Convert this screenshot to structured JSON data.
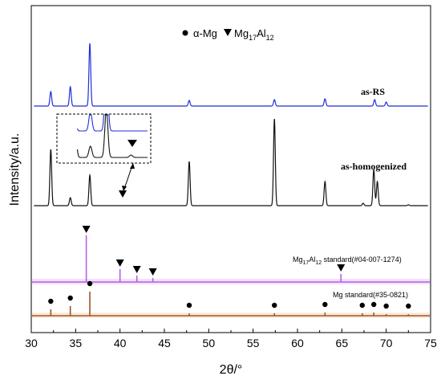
{
  "chart_data": {
    "type": "line",
    "xlabel": "2θ/°",
    "ylabel": "Intensity/a.u.",
    "xlim": [
      30,
      75
    ],
    "xticks": [
      "30",
      "35",
      "40",
      "45",
      "50",
      "55",
      "60",
      "65",
      "70",
      "75"
    ],
    "legend": {
      "position": "top",
      "alpha_label": "α-Mg",
      "mg17_prefix": "Mg",
      "mg17_sub1": "17",
      "mg17_mid": "Al",
      "mg17_sub2": "12"
    },
    "series": [
      {
        "name": "as-RS",
        "color": "#1f2fd8",
        "peaks": [
          [
            32.2,
            18
          ],
          [
            34.4,
            24
          ],
          [
            36.6,
            78
          ],
          [
            47.8,
            7
          ],
          [
            57.4,
            8
          ],
          [
            63.1,
            9
          ],
          [
            68.7,
            8
          ],
          [
            70.0,
            5
          ]
        ]
      },
      {
        "name": "as-homogenized",
        "color": "#111111",
        "peaks": [
          [
            32.2,
            70
          ],
          [
            34.4,
            10
          ],
          [
            36.6,
            38
          ],
          [
            47.8,
            55
          ],
          [
            57.4,
            108
          ],
          [
            63.1,
            30
          ],
          [
            67.4,
            3
          ],
          [
            68.6,
            45
          ],
          [
            69.0,
            30
          ],
          [
            72.5,
            1
          ]
        ]
      }
    ],
    "reference_patterns": [
      {
        "name": "Mg17Al12 standard(#04-007-1274)",
        "label_prefix": "Mg",
        "label_sub1": "17",
        "label_mid": "Al",
        "label_sub2": "12",
        "label_suffix": " standard(#04-007-1274)",
        "color": "#b060e8",
        "lines": [
          [
            36.2,
            58
          ],
          [
            40.0,
            16
          ],
          [
            41.9,
            8
          ],
          [
            43.7,
            5
          ],
          [
            64.9,
            10
          ]
        ]
      },
      {
        "name": "Mg standard(#35-0821)",
        "label": "Mg standard(#35-0821)",
        "color": "#a0522d",
        "lines": [
          [
            32.2,
            8
          ],
          [
            34.4,
            12
          ],
          [
            36.6,
            30
          ],
          [
            47.8,
            3
          ],
          [
            57.4,
            3
          ],
          [
            63.1,
            4
          ],
          [
            67.3,
            3
          ],
          [
            68.6,
            4
          ],
          [
            70.0,
            2
          ],
          [
            72.5,
            2
          ]
        ]
      }
    ],
    "inset": {
      "description_markers": [
        "▼"
      ],
      "x_range": [
        30.0,
        42.5
      ]
    }
  }
}
